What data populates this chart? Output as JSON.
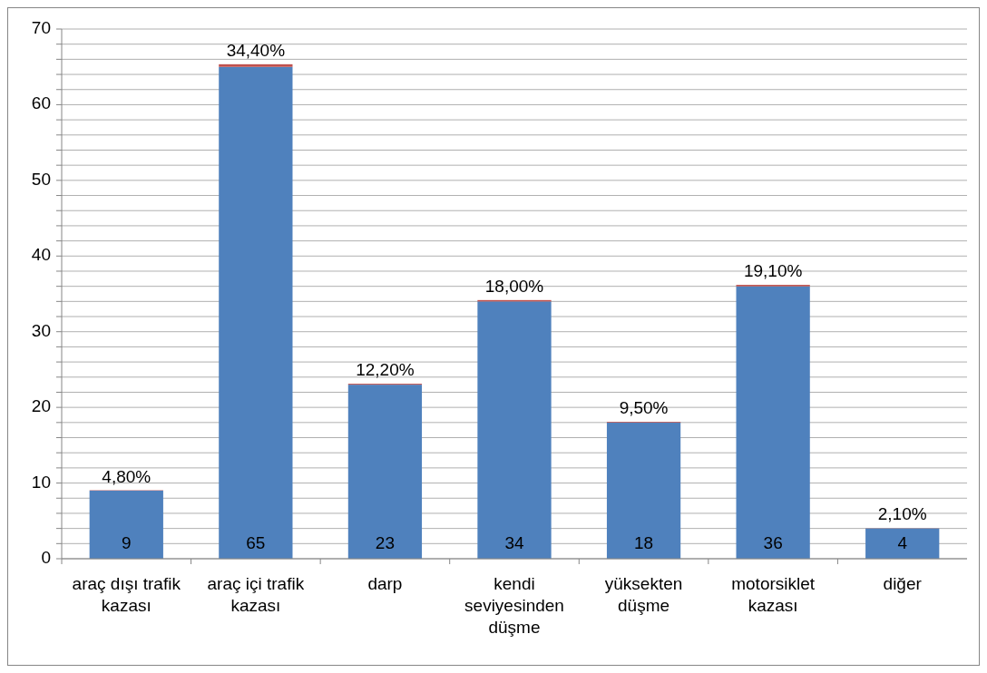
{
  "chart_data": {
    "type": "bar",
    "stacked": true,
    "categories": [
      "araç dışı trafik kazası",
      "araç içi trafik kazası",
      "darp",
      "kendi seviyesinden düşme",
      "yüksekten düşme",
      "motorsiklet kazası",
      "diğer"
    ],
    "series": [
      {
        "color": "#4f81bd",
        "values": [
          9,
          65,
          23,
          34,
          18,
          36,
          4
        ],
        "value_labels": [
          "9",
          "65",
          "23",
          "34",
          "18",
          "36",
          "4"
        ]
      },
      {
        "color": "#c0504d",
        "values": [
          0.048,
          0.344,
          0.122,
          0.18,
          0.095,
          0.191,
          0.021
        ],
        "value_labels": [
          "4,80%",
          "34,40%",
          "12,20%",
          "18,00%",
          "9,50%",
          "19,10%",
          "2,10%"
        ]
      }
    ],
    "ylim": [
      0,
      70
    ],
    "yticks": [
      0,
      {
        "value": 2,
        "label": null
      },
      {
        "value": 4,
        "label": null
      },
      {
        "value": 6,
        "label": null
      },
      {
        "value": 8,
        "label": null
      },
      10,
      {
        "value": 12,
        "label": null
      },
      {
        "value": 14,
        "label": null
      },
      {
        "value": 16,
        "label": null
      },
      {
        "value": 18,
        "label": null
      },
      20,
      {
        "value": 22,
        "label": null
      },
      {
        "value": 24,
        "label": null
      },
      {
        "value": 26,
        "label": null
      },
      {
        "value": 28,
        "label": null
      },
      30,
      {
        "value": 32,
        "label": null
      },
      {
        "value": 34,
        "label": null
      },
      {
        "value": 36,
        "label": null
      },
      {
        "value": 38,
        "label": null
      },
      40,
      {
        "value": 42,
        "label": null
      },
      {
        "value": 44,
        "label": null
      },
      {
        "value": 46,
        "label": null
      },
      {
        "value": 48,
        "label": null
      },
      50,
      {
        "value": 52,
        "label": null
      },
      {
        "value": 54,
        "label": null
      },
      {
        "value": 56,
        "label": null
      },
      {
        "value": 58,
        "label": null
      },
      60,
      {
        "value": 62,
        "label": null
      },
      {
        "value": 64,
        "label": null
      },
      {
        "value": 66,
        "label": null
      },
      {
        "value": 68,
        "label": null
      },
      70
    ],
    "grid": true
  }
}
